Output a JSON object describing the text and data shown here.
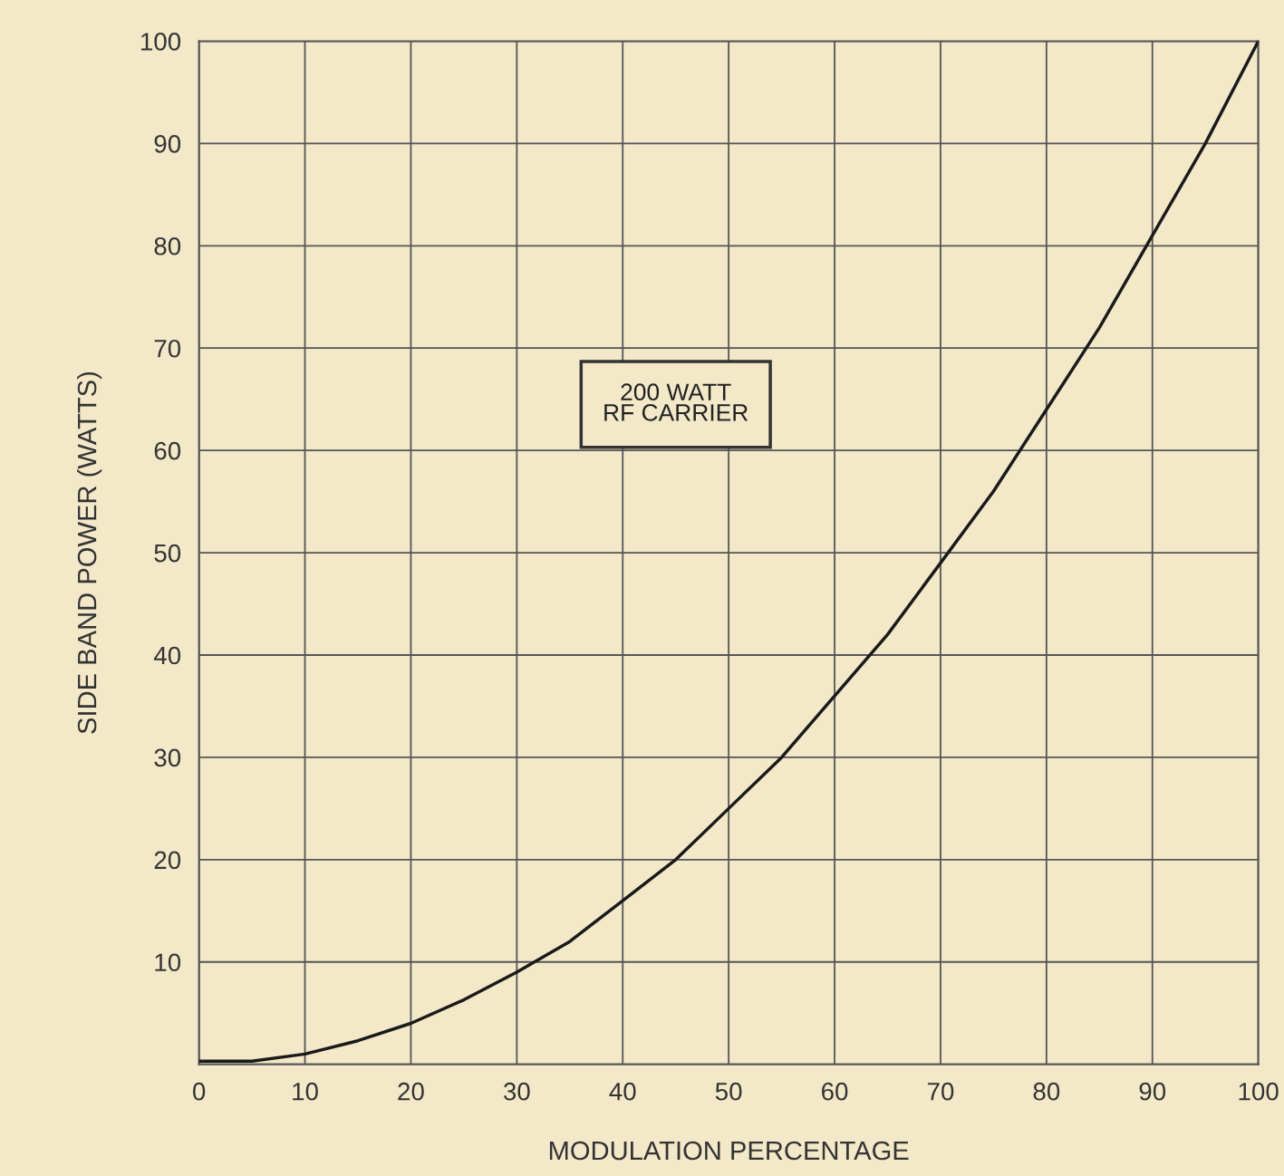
{
  "chart_data": {
    "type": "line",
    "xlabel": "MODULATION PERCENTAGE",
    "ylabel": "SIDE BAND POWER (WATTS)",
    "annotations": [
      "200 WATT\nRF CARRIER"
    ],
    "x": [
      0,
      5,
      10,
      15,
      20,
      25,
      30,
      35,
      40,
      45,
      50,
      55,
      60,
      65,
      70,
      75,
      80,
      85,
      90,
      95,
      100
    ],
    "series": [
      {
        "color": "#1a1a1a",
        "values": [
          0.3,
          0.3,
          1,
          2.3,
          4,
          6.3,
          9,
          12,
          16,
          20,
          25,
          30,
          36,
          42,
          49,
          56,
          64,
          72,
          81,
          90,
          100
        ]
      }
    ],
    "xlim": [
      0,
      100
    ],
    "ylim": [
      0,
      100
    ],
    "xticks": [
      0,
      10,
      20,
      30,
      40,
      50,
      60,
      70,
      80,
      90,
      100
    ],
    "yticks": [
      {
        "value": 0,
        "label": null
      },
      10,
      20,
      30,
      40,
      50,
      60,
      70,
      80,
      90,
      100
    ],
    "grid": true,
    "marker": "none",
    "line_style": "solid"
  }
}
